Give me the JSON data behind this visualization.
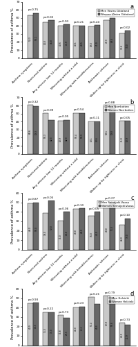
{
  "panels": [
    {
      "label": "a",
      "legend": [
        "Men Västra Götaland",
        "Women Västra Götaland"
      ],
      "men_values": [
        53.3,
        44.8,
        40.6,
        40.1,
        39.0,
        47.3,
        30.6
      ],
      "women_values": [
        56.1,
        46.8,
        41.9,
        40.5,
        41.0,
        49.6,
        34.0
      ],
      "p_values": [
        "p=0.75",
        "p=0.02",
        "p=0.03",
        "p=0.21",
        "p=0.24",
        "p=0.57",
        "p=0.02"
      ],
      "ylim": [
        0,
        70
      ],
      "yticks": [
        0,
        10,
        20,
        30,
        40,
        50,
        60,
        70
      ]
    },
    {
      "label": "b",
      "legend": [
        "Men Norrbotten",
        "Women Norrbotten"
      ],
      "men_values": [
        60.6,
        50.3,
        40.9,
        50.4,
        40.1,
        59.1,
        41.0
      ],
      "women_values": [
        59.3,
        42.3,
        42.3,
        50.9,
        40.6,
        59.8,
        40.9
      ],
      "p_values": [
        "p=0.32",
        "p=0.09",
        "p=0.05",
        "p=0.54",
        "p=0.11",
        "p=0.88",
        "p=0.05"
      ],
      "ylim": [
        0,
        70
      ],
      "yticks": [
        0,
        10,
        20,
        30,
        40,
        50,
        60,
        70
      ]
    },
    {
      "label": "c",
      "legend": [
        "Men Seinäjoki-Vaasa",
        "Women Seinäjoki-Vaasa"
      ],
      "men_values": [
        49.0,
        39.0,
        31.0,
        43.0,
        36.0,
        48.0,
        26.0
      ],
      "women_values": [
        50.0,
        52.0,
        40.0,
        44.0,
        40.0,
        51.0,
        33.0
      ],
      "p_values": [
        "p=0.87",
        "p=0.05",
        "p=0.06",
        "p=0.10",
        "p=0.05",
        "p=0.27",
        "p=0.10"
      ],
      "ylim": [
        0,
        60
      ],
      "yticks": [
        0,
        10,
        20,
        30,
        40,
        50,
        60
      ]
    },
    {
      "label": "d",
      "legend": [
        "Men Helsinki",
        "Women Helsinki"
      ],
      "men_values": [
        44.9,
        35.3,
        31.8,
        40.0,
        51.4,
        52.9,
        23.9
      ],
      "women_values": [
        45.5,
        35.0,
        29.5,
        41.1,
        44.3,
        50.6,
        21.9
      ],
      "p_values": [
        "p=0.93",
        "p=0.22",
        "p=0.73",
        "p=0.23",
        "p=0.21",
        "p=0.79",
        "p=0.73"
      ],
      "ylim": [
        0,
        60
      ],
      "yticks": [
        0,
        10,
        20,
        30,
        40,
        50,
        60
      ]
    }
  ],
  "categories": [
    "Asthma symptoms",
    "Nocturnal asthma",
    "Any wheeze last 12 months",
    "Wheezing without a cold",
    "Wheezing with breathlessness",
    "Asthmatic wheeze",
    "Woken up by tightness in chest"
  ],
  "bar_color_men": "#c8c8c8",
  "bar_color_women": "#686868",
  "bar_width": 0.38,
  "label_fontsize": 3.8,
  "tick_fontsize": 3.2,
  "pval_fontsize": 3.0,
  "barval_fontsize": 2.2,
  "ylabel": "Prevalence of asthma %"
}
